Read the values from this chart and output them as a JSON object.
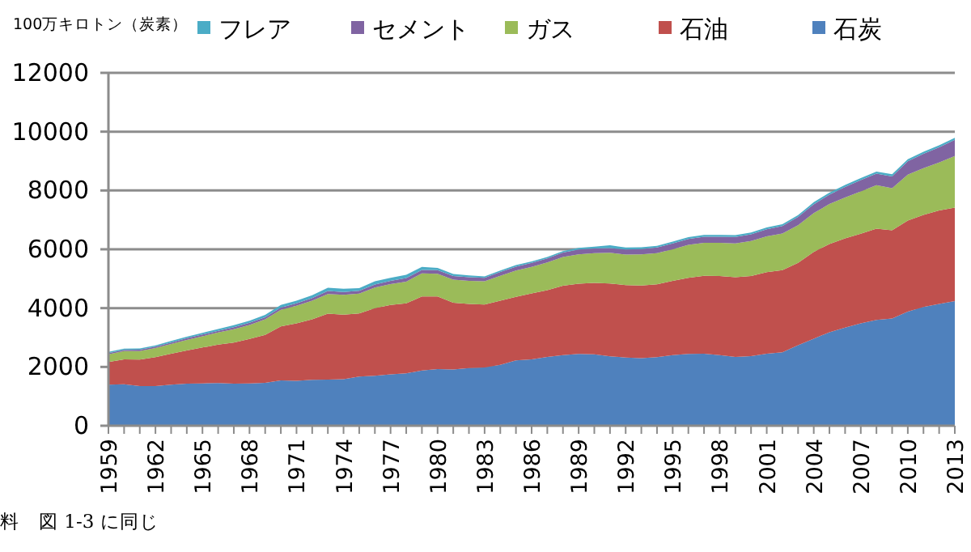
{
  "chart_data": {
    "type": "area",
    "stacked": true,
    "ylabel": "100万キロトン（炭素）",
    "annotations": [
      "料　図 1-3 に同じ"
    ],
    "categories": [
      "1959",
      null,
      null,
      "1962",
      null,
      null,
      "1965",
      null,
      null,
      "1968",
      null,
      null,
      "1971",
      null,
      null,
      "1974",
      null,
      null,
      "1977",
      null,
      null,
      "1980",
      null,
      null,
      "1983",
      null,
      null,
      "1986",
      null,
      null,
      "1989",
      null,
      null,
      "1992",
      null,
      null,
      "1995",
      null,
      null,
      "1998",
      null,
      null,
      "2001",
      null,
      null,
      "2004",
      null,
      null,
      "2007",
      null,
      null,
      "2010",
      null,
      null,
      "2013"
    ],
    "ylim": [
      0,
      12000
    ],
    "yticks": [
      0,
      2000,
      4000,
      6000,
      8000,
      10000,
      12000
    ],
    "grid": "y",
    "legend": "top",
    "series": [
      {
        "name": "石炭",
        "color": "#4f81bd",
        "values": [
          1400,
          1410,
          1350,
          1350,
          1400,
          1430,
          1440,
          1450,
          1430,
          1440,
          1460,
          1540,
          1530,
          1560,
          1570,
          1580,
          1670,
          1700,
          1750,
          1780,
          1880,
          1930,
          1910,
          1960,
          1980,
          2070,
          2220,
          2260,
          2340,
          2400,
          2440,
          2430,
          2360,
          2320,
          2300,
          2330,
          2400,
          2440,
          2450,
          2400,
          2340,
          2370,
          2450,
          2500,
          2740,
          2960,
          3180,
          3340,
          3480,
          3600,
          3650,
          3880,
          4040,
          4140,
          4240
        ]
      },
      {
        "name": "石油",
        "color": "#c0504d",
        "values": [
          770,
          850,
          900,
          980,
          1050,
          1130,
          1220,
          1310,
          1400,
          1510,
          1630,
          1840,
          1950,
          2060,
          2240,
          2200,
          2150,
          2300,
          2360,
          2380,
          2520,
          2470,
          2270,
          2180,
          2140,
          2180,
          2160,
          2240,
          2270,
          2360,
          2390,
          2430,
          2480,
          2460,
          2470,
          2480,
          2530,
          2590,
          2650,
          2690,
          2710,
          2720,
          2770,
          2790,
          2800,
          2950,
          3000,
          3030,
          3050,
          3100,
          3000,
          3100,
          3130,
          3180,
          3180
        ]
      },
      {
        "name": "ガス",
        "color": "#9bbb59",
        "values": [
          260,
          280,
          290,
          310,
          330,
          360,
          380,
          410,
          450,
          480,
          530,
          560,
          600,
          630,
          670,
          670,
          670,
          700,
          710,
          740,
          780,
          770,
          790,
          790,
          790,
          850,
          900,
          900,
          940,
          980,
          1000,
          1010,
          1040,
          1040,
          1060,
          1060,
          1070,
          1120,
          1120,
          1130,
          1150,
          1190,
          1220,
          1250,
          1280,
          1320,
          1360,
          1390,
          1440,
          1480,
          1430,
          1560,
          1590,
          1630,
          1750
        ]
      },
      {
        "name": "セメント",
        "color": "#8064a2",
        "values": [
          40,
          40,
          50,
          50,
          50,
          60,
          60,
          60,
          70,
          70,
          70,
          80,
          80,
          90,
          100,
          100,
          100,
          100,
          110,
          120,
          120,
          120,
          120,
          120,
          120,
          130,
          130,
          140,
          140,
          150,
          160,
          160,
          160,
          170,
          180,
          190,
          200,
          200,
          210,
          210,
          220,
          230,
          240,
          250,
          280,
          300,
          320,
          360,
          380,
          390,
          400,
          450,
          490,
          520,
          550
        ]
      },
      {
        "name": "フレア",
        "color": "#4bacc6",
        "values": [
          40,
          40,
          40,
          40,
          50,
          50,
          60,
          60,
          70,
          70,
          80,
          90,
          90,
          100,
          110,
          110,
          90,
          110,
          100,
          110,
          100,
          80,
          70,
          60,
          50,
          50,
          50,
          50,
          50,
          50,
          60,
          60,
          100,
          70,
          60,
          60,
          60,
          60,
          60,
          60,
          60,
          60,
          60,
          60,
          60,
          70,
          70,
          70,
          70,
          70,
          70,
          70,
          70,
          70,
          70
        ]
      }
    ]
  }
}
